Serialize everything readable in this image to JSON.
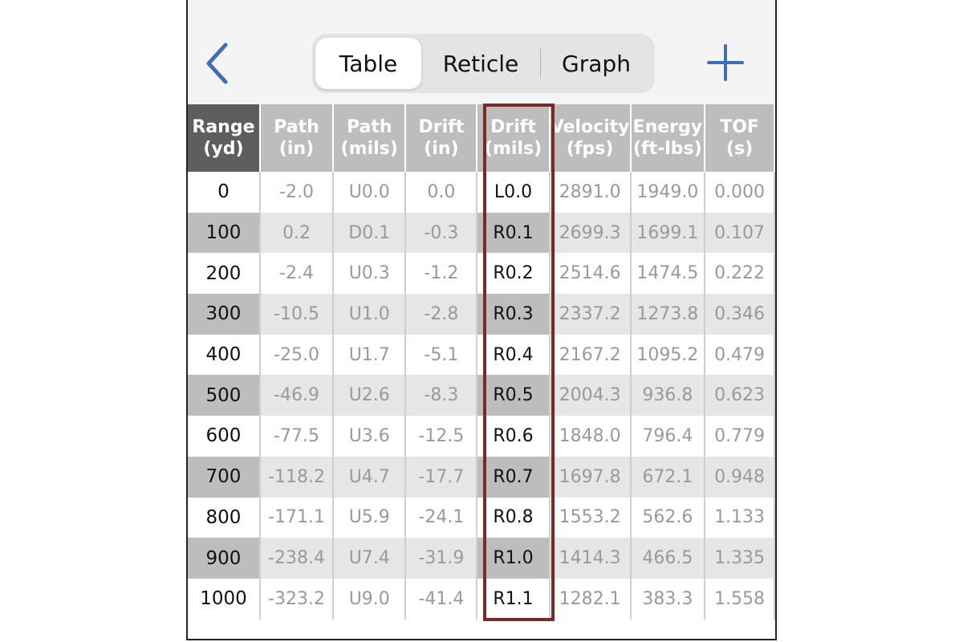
{
  "colors": {
    "accent": "#3e6fb5",
    "highlight_border": "#7a2a26",
    "header_dark": "#5e5e5e",
    "header_light": "#bdbdbd"
  },
  "nav": {
    "back_icon": "chevron-left-icon",
    "add_icon": "plus-icon",
    "tabs": [
      {
        "label": "Table",
        "active": true
      },
      {
        "label": "Reticle",
        "active": false
      },
      {
        "label": "Graph",
        "active": false
      }
    ]
  },
  "table": {
    "headers": [
      {
        "line1": "Range",
        "line2": "(yd)"
      },
      {
        "line1": "Path",
        "line2": "(in)"
      },
      {
        "line1": "Path",
        "line2": "(mils)"
      },
      {
        "line1": "Drift",
        "line2": "(in)"
      },
      {
        "line1": "Drift",
        "line2": "(mils)"
      },
      {
        "line1": "Velocity",
        "line2": "(fps)"
      },
      {
        "line1": "Energy",
        "line2": "(ft-lbs)"
      },
      {
        "line1": "TOF",
        "line2": "(s)"
      }
    ],
    "highlighted_column": 4,
    "rows": [
      [
        "0",
        "-2.0",
        "U0.0",
        "0.0",
        "L0.0",
        "2891.0",
        "1949.0",
        "0.000"
      ],
      [
        "100",
        "0.2",
        "D0.1",
        "-0.3",
        "R0.1",
        "2699.3",
        "1699.1",
        "0.107"
      ],
      [
        "200",
        "-2.4",
        "U0.3",
        "-1.2",
        "R0.2",
        "2514.6",
        "1474.5",
        "0.222"
      ],
      [
        "300",
        "-10.5",
        "U1.0",
        "-2.8",
        "R0.3",
        "2337.2",
        "1273.8",
        "0.346"
      ],
      [
        "400",
        "-25.0",
        "U1.7",
        "-5.1",
        "R0.4",
        "2167.2",
        "1095.2",
        "0.479"
      ],
      [
        "500",
        "-46.9",
        "U2.6",
        "-8.3",
        "R0.5",
        "2004.3",
        "936.8",
        "0.623"
      ],
      [
        "600",
        "-77.5",
        "U3.6",
        "-12.5",
        "R0.6",
        "1848.0",
        "796.4",
        "0.779"
      ],
      [
        "700",
        "-118.2",
        "U4.7",
        "-17.7",
        "R0.7",
        "1697.8",
        "672.1",
        "0.948"
      ],
      [
        "800",
        "-171.1",
        "U5.9",
        "-24.1",
        "R0.8",
        "1553.2",
        "562.6",
        "1.133"
      ],
      [
        "900",
        "-238.4",
        "U7.4",
        "-31.9",
        "R1.0",
        "1414.3",
        "466.5",
        "1.335"
      ],
      [
        "1000",
        "-323.2",
        "U9.0",
        "-41.4",
        "R1.1",
        "1282.1",
        "383.3",
        "1.558"
      ]
    ]
  }
}
